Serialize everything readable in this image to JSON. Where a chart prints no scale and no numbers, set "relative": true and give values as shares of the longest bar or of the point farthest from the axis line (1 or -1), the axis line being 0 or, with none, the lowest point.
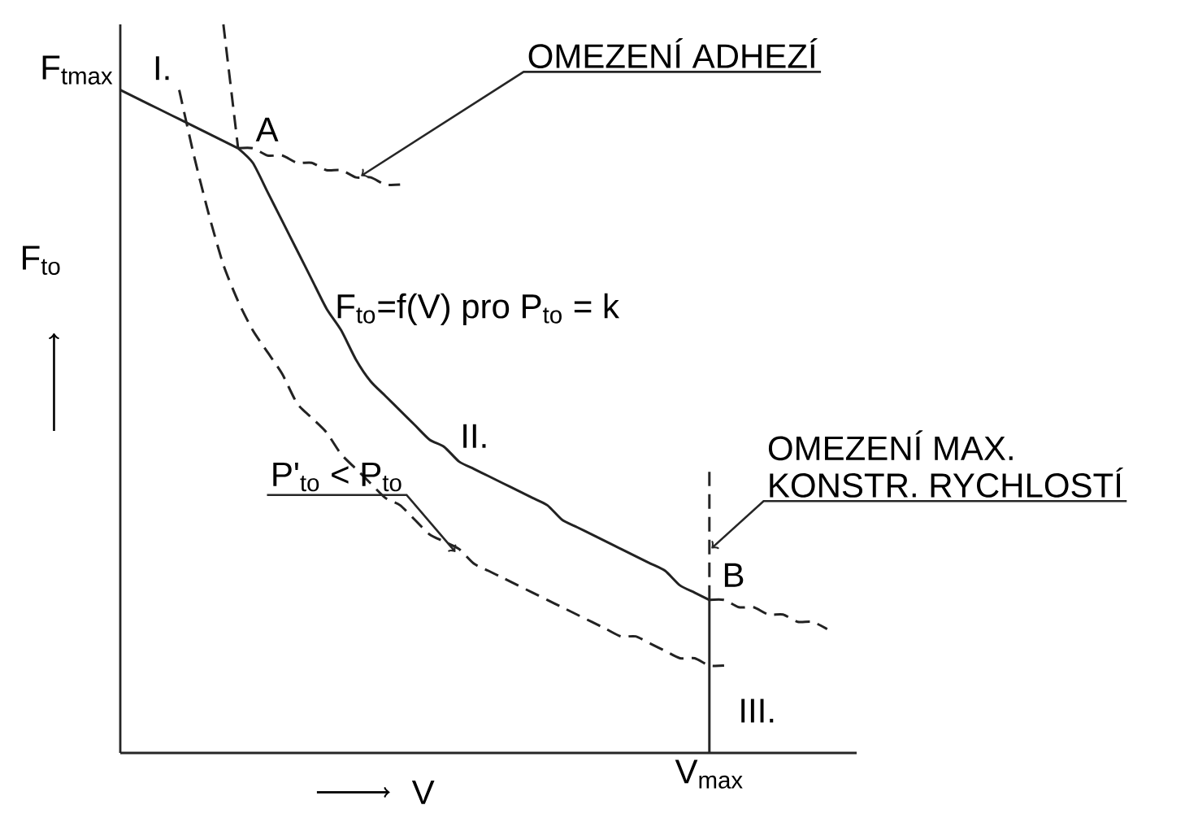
{
  "chart_data": {
    "type": "line",
    "relative": true,
    "marker": "none",
    "xlabel": "V",
    "ylabel": "F$_{to}$",
    "categories": [
      null,
      null,
      null,
      null,
      null,
      null,
      null,
      null,
      null,
      null,
      null,
      null,
      null,
      null,
      null,
      null,
      null,
      null,
      null,
      null,
      null,
      null,
      null,
      null,
      null,
      null,
      null,
      null,
      null,
      null,
      null,
      null,
      null,
      null,
      null,
      null,
      null,
      null,
      null,
      null,
      null,
      null,
      null,
      null,
      null,
      null,
      null,
      null,
      null,
      null,
      null
    ],
    "series": [
      {
        "color": "#222222",
        "line_style": "solid",
        "values": [
          0.91,
          0.9,
          0.89,
          0.88,
          0.87,
          0.86,
          0.85,
          0.84,
          0.83,
          null,
          null,
          null,
          null,
          null,
          null,
          null,
          null,
          null,
          null,
          null,
          null,
          null,
          null,
          null,
          null,
          null,
          null,
          null,
          null,
          null,
          null,
          null,
          null,
          null,
          null,
          null,
          null,
          null,
          null,
          null,
          null,
          null,
          null,
          null,
          null,
          null,
          null,
          null,
          null,
          null,
          null
        ]
      },
      {
        "color": "#222222",
        "line_style": "dashed",
        "values": [
          null,
          null,
          null,
          null,
          null,
          null,
          null,
          null,
          0.83,
          0.83,
          0.82,
          0.82,
          0.81,
          0.81,
          0.8,
          0.8,
          0.79,
          0.79,
          0.78,
          0.78,
          null,
          null,
          null,
          null,
          null,
          null,
          null,
          null,
          null,
          null,
          null,
          null,
          null,
          null,
          null,
          null,
          null,
          null,
          null,
          null,
          null,
          null,
          null,
          null,
          null,
          null,
          null,
          null,
          null,
          null,
          null
        ]
      },
      {
        "color": "#222222",
        "line_style": "dashed",
        "values": [
          null,
          null,
          null,
          null,
          null,
          null,
          null,
          1.0,
          0.83,
          null,
          null,
          null,
          null,
          null,
          null,
          null,
          null,
          null,
          null,
          null,
          null,
          null,
          null,
          null,
          null,
          null,
          null,
          null,
          null,
          null,
          null,
          null,
          null,
          null,
          null,
          null,
          null,
          null,
          null,
          null,
          null,
          null,
          null,
          null,
          null,
          null,
          null,
          null,
          null,
          null,
          null
        ]
      },
      {
        "color": "#222222",
        "line_style": "solid",
        "values": [
          null,
          null,
          null,
          null,
          null,
          null,
          null,
          null,
          0.83,
          0.81,
          0.77,
          0.73,
          0.69,
          0.65,
          0.61,
          0.58,
          0.54,
          0.51,
          0.49,
          0.47,
          0.45,
          0.43,
          0.42,
          0.4,
          0.39,
          0.38,
          0.37,
          0.36,
          0.35,
          0.34,
          0.32,
          0.31,
          0.3,
          0.29,
          0.28,
          0.27,
          0.26,
          0.25,
          0.23,
          0.22,
          0.21,
          null,
          null,
          null,
          null,
          null,
          null,
          null,
          null,
          null,
          null
        ]
      },
      {
        "color": "#222222",
        "line_style": "dashed",
        "values": [
          null,
          null,
          null,
          null,
          null,
          null,
          null,
          null,
          null,
          null,
          null,
          null,
          null,
          null,
          null,
          null,
          null,
          null,
          null,
          null,
          null,
          null,
          null,
          null,
          null,
          null,
          null,
          null,
          null,
          null,
          null,
          null,
          null,
          null,
          null,
          null,
          null,
          null,
          null,
          null,
          0.21,
          0.21,
          0.2,
          0.2,
          0.19,
          0.19,
          0.18,
          0.18,
          0.17,
          null,
          null
        ]
      },
      {
        "color": "#222222",
        "line_style": "dashed",
        "values": [
          null,
          null,
          null,
          null,
          0.91,
          0.82,
          0.74,
          0.67,
          0.62,
          0.58,
          0.55,
          0.52,
          0.48,
          0.46,
          0.44,
          0.41,
          0.39,
          0.37,
          0.35,
          0.34,
          0.32,
          0.3,
          0.29,
          0.28,
          0.26,
          0.25,
          0.24,
          0.23,
          0.22,
          0.21,
          0.2,
          0.19,
          0.18,
          0.17,
          0.16,
          0.16,
          0.15,
          0.14,
          0.13,
          0.13,
          0.12,
          0.12,
          null,
          null,
          null,
          null,
          null,
          null,
          null,
          null,
          null
        ]
      }
    ],
    "annotations": [
      "F$_{tmax}$",
      "I.",
      "A",
      "OMEZENÍ ADHEZÍ",
      "F$_{to}$=f(V) pro P$_{to}$ = k",
      "II.",
      "OMEZENÍ MAX.",
      "KONSTR. RYCHLOSTÍ",
      "B",
      "P'$_{to}$ < P$_{to}$",
      "III.",
      "V$_{max}$"
    ]
  }
}
